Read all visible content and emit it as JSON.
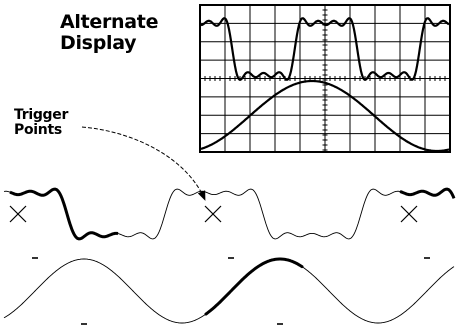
{
  "title": {
    "line1": "Alternate",
    "line2": "Display"
  },
  "trigger_label": {
    "line1": "Trigger",
    "line2": "Points"
  },
  "colors": {
    "ink": "#000000",
    "background": "#ffffff"
  }
}
